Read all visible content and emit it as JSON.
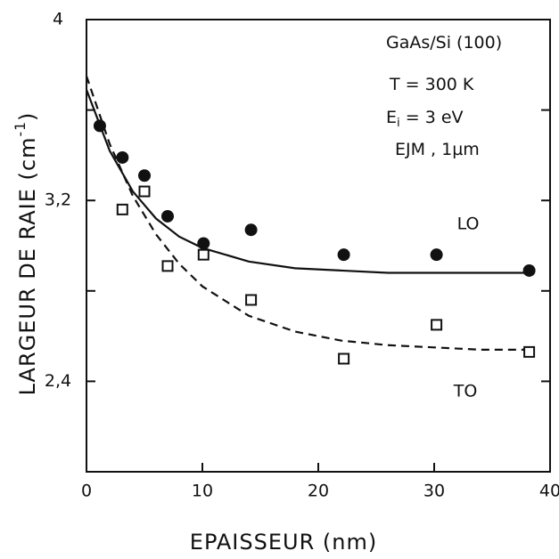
{
  "chart_data": {
    "type": "scatter",
    "x_label": "EPAISSEUR (nm)",
    "y_label": [
      {
        "text": "LARGEUR DE RAIE (cm"
      },
      {
        "text": "-1",
        "sup": true
      },
      {
        "text": ")"
      }
    ],
    "annotations": [
      [
        {
          "text": "GaAs/Si (100)"
        }
      ],
      [
        {
          "text": "T = 300 K"
        }
      ],
      [
        {
          "text": "E"
        },
        {
          "text": "i",
          "sub": true
        },
        {
          "text": " = 3 eV"
        }
      ],
      [
        {
          "text": "EJM , 1µm"
        }
      ]
    ],
    "xlim": [
      0,
      40
    ],
    "xticks": [
      0,
      10,
      20,
      30,
      40
    ],
    "ylim": [
      2.0,
      4.0
    ],
    "yticks": [
      {
        "value": 2.4,
        "label": "2,4"
      },
      {
        "value": 2.8,
        "label": null
      },
      {
        "value": 3.2,
        "label": "3,2"
      },
      {
        "value": 3.6,
        "label": null
      },
      4
    ],
    "series": [
      {
        "name": "LO",
        "marker": "circle",
        "color": "#111",
        "x": [
          1.15,
          3.1,
          5.0,
          7.0,
          10.1,
          14.2,
          22.2,
          30.2,
          38.2
        ],
        "values": [
          3.53,
          3.39,
          3.31,
          3.13,
          3.01,
          3.07,
          2.96,
          2.96,
          2.89
        ],
        "fit_dash": false,
        "fit_x": [
          0,
          2,
          4,
          6,
          8,
          10,
          14,
          18,
          22,
          26,
          30,
          34,
          38
        ],
        "fit_values": [
          3.69,
          3.42,
          3.24,
          3.12,
          3.04,
          2.99,
          2.93,
          2.9,
          2.89,
          2.88,
          2.88,
          2.88,
          2.88
        ]
      },
      {
        "name": "TO",
        "marker": "square",
        "color": "#111",
        "x": [
          3.1,
          5.0,
          7.0,
          10.1,
          14.2,
          22.2,
          30.2,
          38.2
        ],
        "values": [
          3.16,
          3.24,
          2.91,
          2.96,
          2.76,
          2.5,
          2.65,
          2.53
        ],
        "fit_dash": true,
        "fit_x": [
          0,
          2,
          4,
          6,
          8,
          10,
          14,
          18,
          22,
          26,
          30,
          34,
          38
        ],
        "fit_values": [
          3.75,
          3.45,
          3.22,
          3.05,
          2.92,
          2.82,
          2.69,
          2.62,
          2.58,
          2.56,
          2.55,
          2.54,
          2.54
        ]
      }
    ]
  }
}
